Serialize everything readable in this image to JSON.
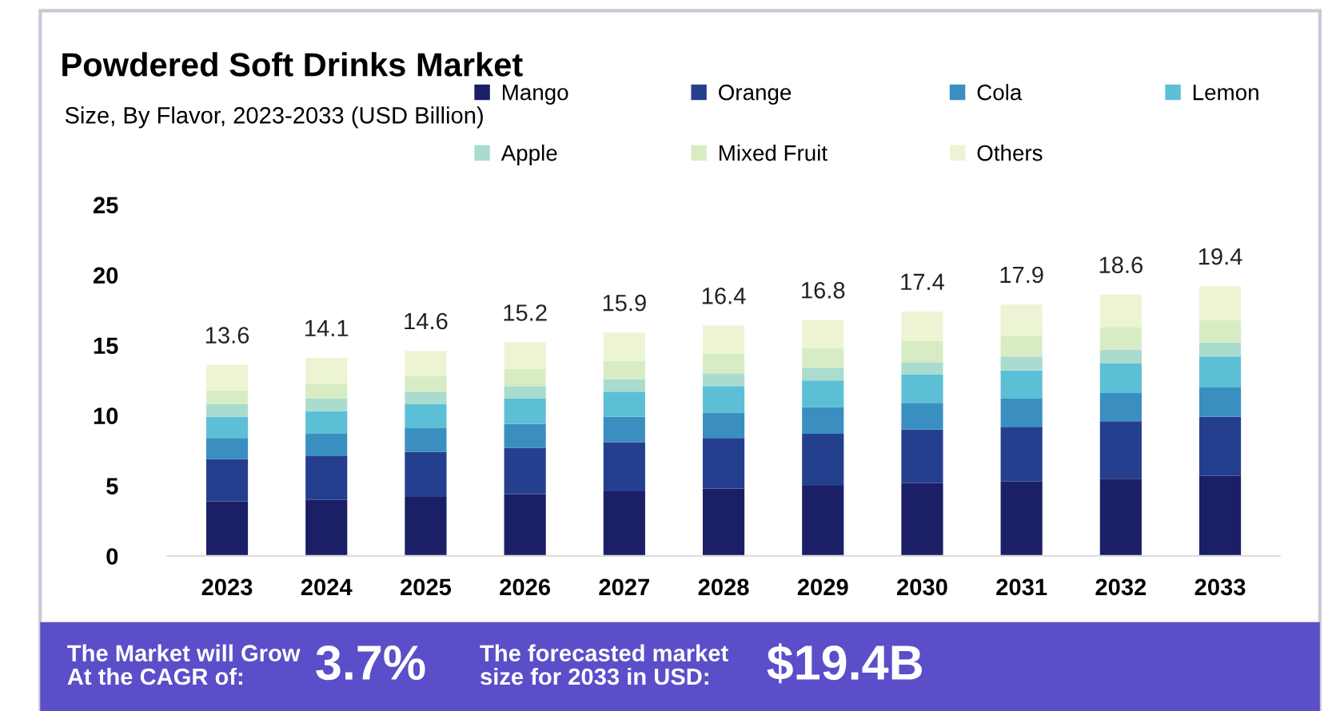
{
  "chart_data": {
    "type": "bar",
    "stacked": true,
    "title": "Powdered Soft Drinks Market",
    "subtitle": "Size, By Flavor, 2023-2033 (USD Billion)",
    "categories": [
      "2023",
      "2024",
      "2025",
      "2026",
      "2027",
      "2028",
      "2029",
      "2030",
      "2031",
      "2032",
      "2033"
    ],
    "series": [
      {
        "name": "Mango",
        "color": "#1a1f66",
        "values": [
          3.9,
          4.0,
          4.2,
          4.4,
          4.6,
          4.8,
          5.0,
          5.2,
          5.3,
          5.5,
          5.7
        ]
      },
      {
        "name": "Orange",
        "color": "#253f8f",
        "values": [
          3.0,
          3.1,
          3.2,
          3.3,
          3.5,
          3.6,
          3.7,
          3.8,
          3.9,
          4.1,
          4.2
        ]
      },
      {
        "name": "Cola",
        "color": "#3a8fc0",
        "values": [
          1.5,
          1.6,
          1.7,
          1.7,
          1.8,
          1.8,
          1.9,
          1.9,
          2.0,
          2.0,
          2.1
        ]
      },
      {
        "name": "Lemon",
        "color": "#5dbfd6",
        "values": [
          1.5,
          1.6,
          1.7,
          1.8,
          1.8,
          1.9,
          1.9,
          2.0,
          2.0,
          2.1,
          2.2
        ]
      },
      {
        "name": "Apple",
        "color": "#a9dccf",
        "values": [
          0.9,
          0.9,
          0.9,
          0.9,
          0.9,
          0.9,
          0.9,
          0.9,
          1.0,
          1.0,
          1.0
        ]
      },
      {
        "name": "Mixed Fruit",
        "color": "#d8ecc4",
        "values": [
          1.0,
          1.1,
          1.1,
          1.2,
          1.3,
          1.4,
          1.4,
          1.5,
          1.5,
          1.6,
          1.6
        ]
      },
      {
        "name": "Others",
        "color": "#edf4d4",
        "values": [
          1.8,
          1.8,
          1.8,
          1.9,
          2.0,
          2.0,
          2.0,
          2.1,
          2.2,
          2.3,
          2.4
        ]
      }
    ],
    "totals": [
      "13.6",
      "14.1",
      "14.6",
      "15.2",
      "15.9",
      "16.4",
      "16.8",
      "17.4",
      "17.9",
      "18.6",
      "19.4"
    ],
    "ylim": [
      0,
      25
    ],
    "yticks": [
      0,
      5,
      10,
      15,
      20,
      25
    ],
    "grid": false,
    "legend": "top right",
    "annotations": [
      "The Market will Grow\nAt the CAGR of:",
      "3.7%",
      "The forecasted market\nsize for 2033 in USD:",
      "$19.4B"
    ]
  }
}
